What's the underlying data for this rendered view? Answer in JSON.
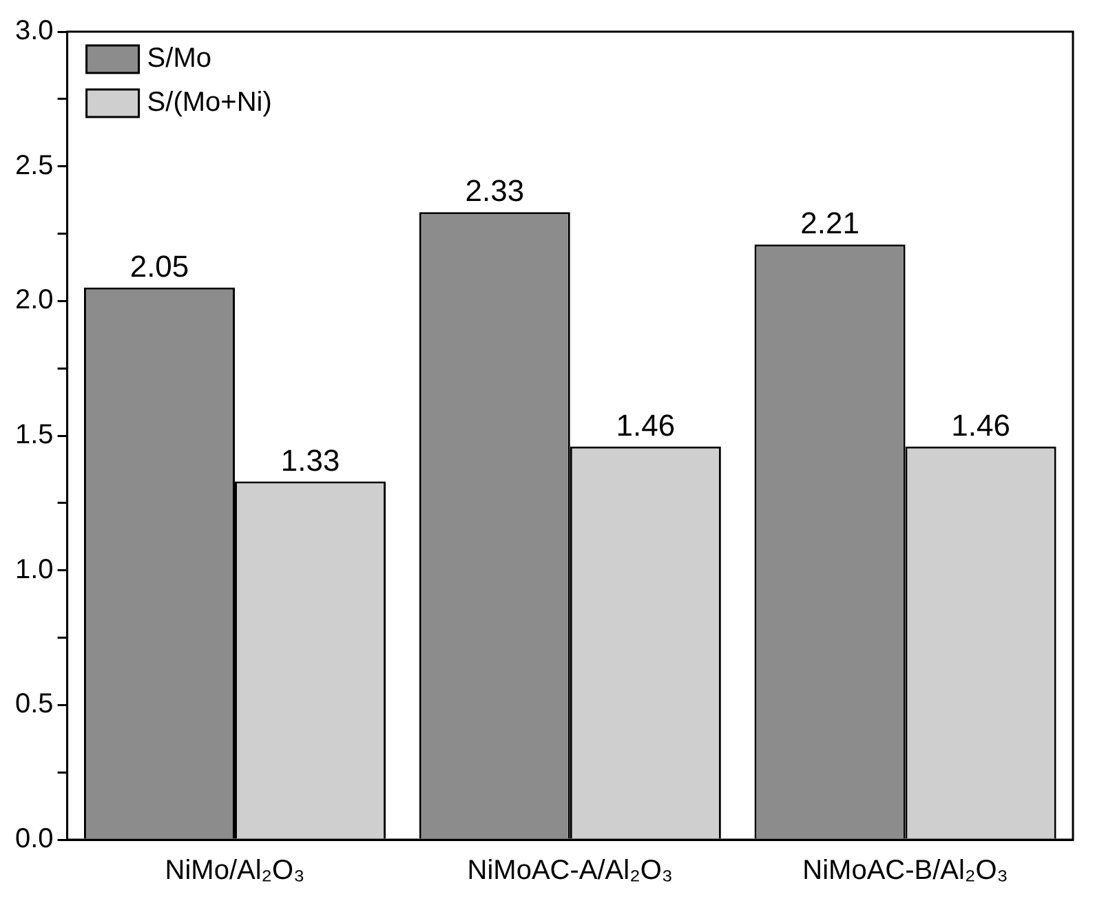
{
  "chart_data": {
    "type": "bar",
    "categories": [
      "NiMo/Al₂O₃",
      "NiMoAC-A/Al₂O₃",
      "NiMoAC-B/Al₂O₃"
    ],
    "series": [
      {
        "name": "S/Mo",
        "color": "#8c8c8c",
        "values": [
          2.05,
          2.33,
          2.21
        ]
      },
      {
        "name": "S/(Mo+Ni)",
        "color": "#cfcfcf",
        "values": [
          1.33,
          1.46,
          1.46
        ]
      }
    ],
    "ylim": [
      0,
      3
    ],
    "yticks": [
      {
        "value": 0,
        "label": "0.0"
      },
      {
        "value": 0.25,
        "label": null
      },
      {
        "value": 0.5,
        "label": "0.5"
      },
      {
        "value": 0.75,
        "label": null
      },
      {
        "value": 1,
        "label": "1.0"
      },
      {
        "value": 1.25,
        "label": null
      },
      {
        "value": 1.5,
        "label": "1.5"
      },
      {
        "value": 1.75,
        "label": null
      },
      {
        "value": 2,
        "label": "2.0"
      },
      {
        "value": 2.25,
        "label": null
      },
      {
        "value": 2.5,
        "label": "2.5"
      },
      {
        "value": 2.75,
        "label": null
      },
      {
        "value": 3,
        "label": "3.0"
      }
    ],
    "grid": false,
    "legend": "top left",
    "data_labels": true
  }
}
